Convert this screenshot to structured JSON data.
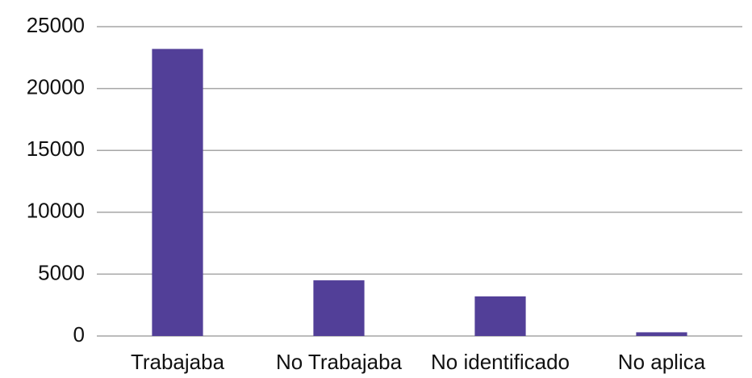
{
  "chart_data": {
    "type": "bar",
    "categories": [
      "Trabajaba",
      "No Trabajaba",
      "No identificado",
      "No aplica"
    ],
    "values": [
      23200,
      4500,
      3200,
      300
    ],
    "color": "#523f98",
    "ylim": [
      0,
      25000
    ],
    "yticks": [
      0,
      5000,
      10000,
      15000,
      20000,
      25000
    ],
    "grid": true
  }
}
